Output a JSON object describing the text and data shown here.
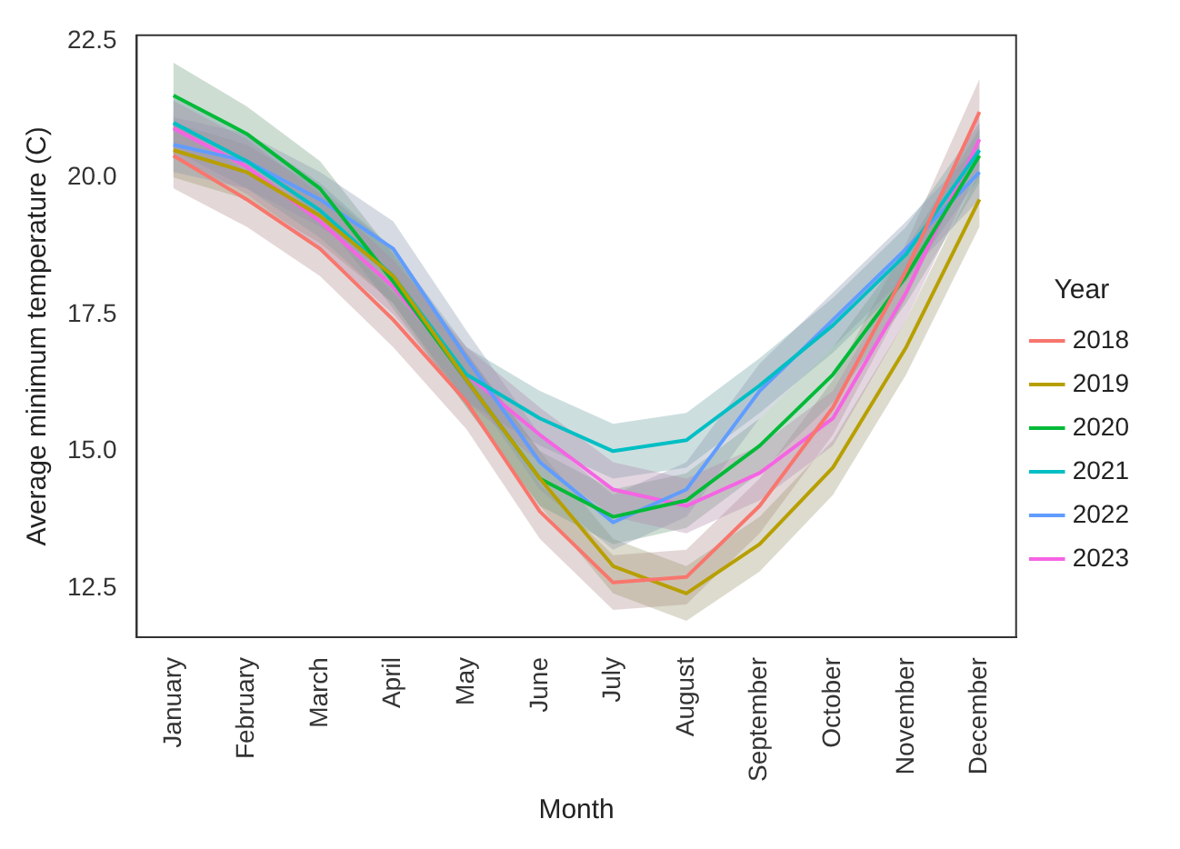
{
  "chart_data": {
    "type": "line",
    "xlabel": "Month",
    "ylabel": "Average minimum temperature (C)",
    "legend_title": "Year",
    "legend": "right",
    "grid": false,
    "marker": "none",
    "line_style": "solid",
    "categories": [
      "January",
      "February",
      "March",
      "April",
      "May",
      "June",
      "July",
      "August",
      "September",
      "October",
      "November",
      "December"
    ],
    "ylim": [
      11.6,
      22.6
    ],
    "yticks": [
      {
        "value": 12.5,
        "label": "12.5"
      },
      {
        "value": 15,
        "label": "15.0"
      },
      {
        "value": 17.5,
        "label": "17.5"
      },
      {
        "value": 20,
        "label": "20.0"
      },
      {
        "value": 22.5,
        "label": "22.5"
      }
    ],
    "series": [
      {
        "name": "2018",
        "color": "#f8766d",
        "values": [
          20.4,
          19.6,
          18.7,
          17.4,
          15.9,
          13.9,
          12.6,
          12.7,
          14.0,
          15.8,
          18.3,
          21.2
        ],
        "lower": [
          19.8,
          19.1,
          18.2,
          16.9,
          15.4,
          13.4,
          12.1,
          12.2,
          13.5,
          15.3,
          17.8,
          20.6
        ],
        "upper": [
          21.0,
          20.1,
          19.2,
          17.9,
          16.4,
          14.4,
          13.1,
          13.2,
          14.5,
          16.3,
          18.8,
          21.8
        ]
      },
      {
        "name": "2019",
        "color": "#b79f00",
        "values": [
          20.5,
          20.1,
          19.3,
          18.2,
          16.3,
          14.5,
          12.9,
          12.4,
          13.3,
          14.7,
          16.9,
          19.6
        ],
        "lower": [
          20.0,
          19.6,
          18.8,
          17.7,
          15.8,
          14.0,
          12.4,
          11.9,
          12.8,
          14.2,
          16.4,
          19.1
        ],
        "upper": [
          21.0,
          20.6,
          19.8,
          18.7,
          16.8,
          15.0,
          13.4,
          12.9,
          13.8,
          15.2,
          17.4,
          20.1
        ]
      },
      {
        "name": "2020",
        "color": "#00ba38",
        "values": [
          21.5,
          20.8,
          19.8,
          18.1,
          16.3,
          14.5,
          13.8,
          14.1,
          15.1,
          16.4,
          18.2,
          20.4
        ],
        "lower": [
          20.9,
          20.3,
          19.3,
          17.6,
          15.8,
          14.0,
          13.3,
          13.6,
          14.6,
          15.9,
          17.7,
          19.9
        ],
        "upper": [
          22.1,
          21.3,
          20.3,
          18.6,
          16.8,
          15.0,
          14.3,
          14.6,
          15.6,
          16.9,
          18.7,
          20.9
        ]
      },
      {
        "name": "2021",
        "color": "#00bfc4",
        "values": [
          21.0,
          20.3,
          19.4,
          18.2,
          16.4,
          15.6,
          15.0,
          15.2,
          16.2,
          17.3,
          18.6,
          20.5
        ],
        "lower": [
          20.5,
          19.8,
          18.9,
          17.7,
          15.9,
          15.1,
          14.5,
          14.7,
          15.7,
          16.8,
          18.1,
          20.0
        ],
        "upper": [
          21.5,
          20.8,
          19.9,
          18.7,
          16.9,
          16.1,
          15.5,
          15.7,
          16.7,
          17.8,
          19.1,
          21.0
        ]
      },
      {
        "name": "2022",
        "color": "#619cff",
        "values": [
          20.6,
          20.3,
          19.6,
          18.7,
          16.7,
          14.8,
          13.7,
          14.3,
          16.1,
          17.4,
          18.7,
          20.1
        ],
        "lower": [
          20.1,
          19.8,
          19.1,
          18.2,
          16.2,
          14.3,
          13.2,
          13.8,
          15.6,
          16.9,
          18.2,
          19.6
        ],
        "upper": [
          21.1,
          20.8,
          20.1,
          19.2,
          17.2,
          15.3,
          14.2,
          14.8,
          16.6,
          17.9,
          19.2,
          20.6
        ]
      },
      {
        "name": "2023",
        "color": "#f564e3",
        "values": [
          20.9,
          20.2,
          19.2,
          18.0,
          16.4,
          15.3,
          14.3,
          14.0,
          14.6,
          15.6,
          17.9,
          20.7
        ],
        "lower": [
          20.4,
          19.7,
          18.7,
          17.5,
          15.9,
          14.8,
          13.8,
          13.5,
          14.1,
          15.1,
          17.4,
          20.2
        ],
        "upper": [
          21.4,
          20.7,
          19.7,
          18.5,
          16.9,
          15.8,
          14.8,
          14.5,
          15.1,
          16.1,
          18.4,
          21.2
        ]
      }
    ]
  }
}
